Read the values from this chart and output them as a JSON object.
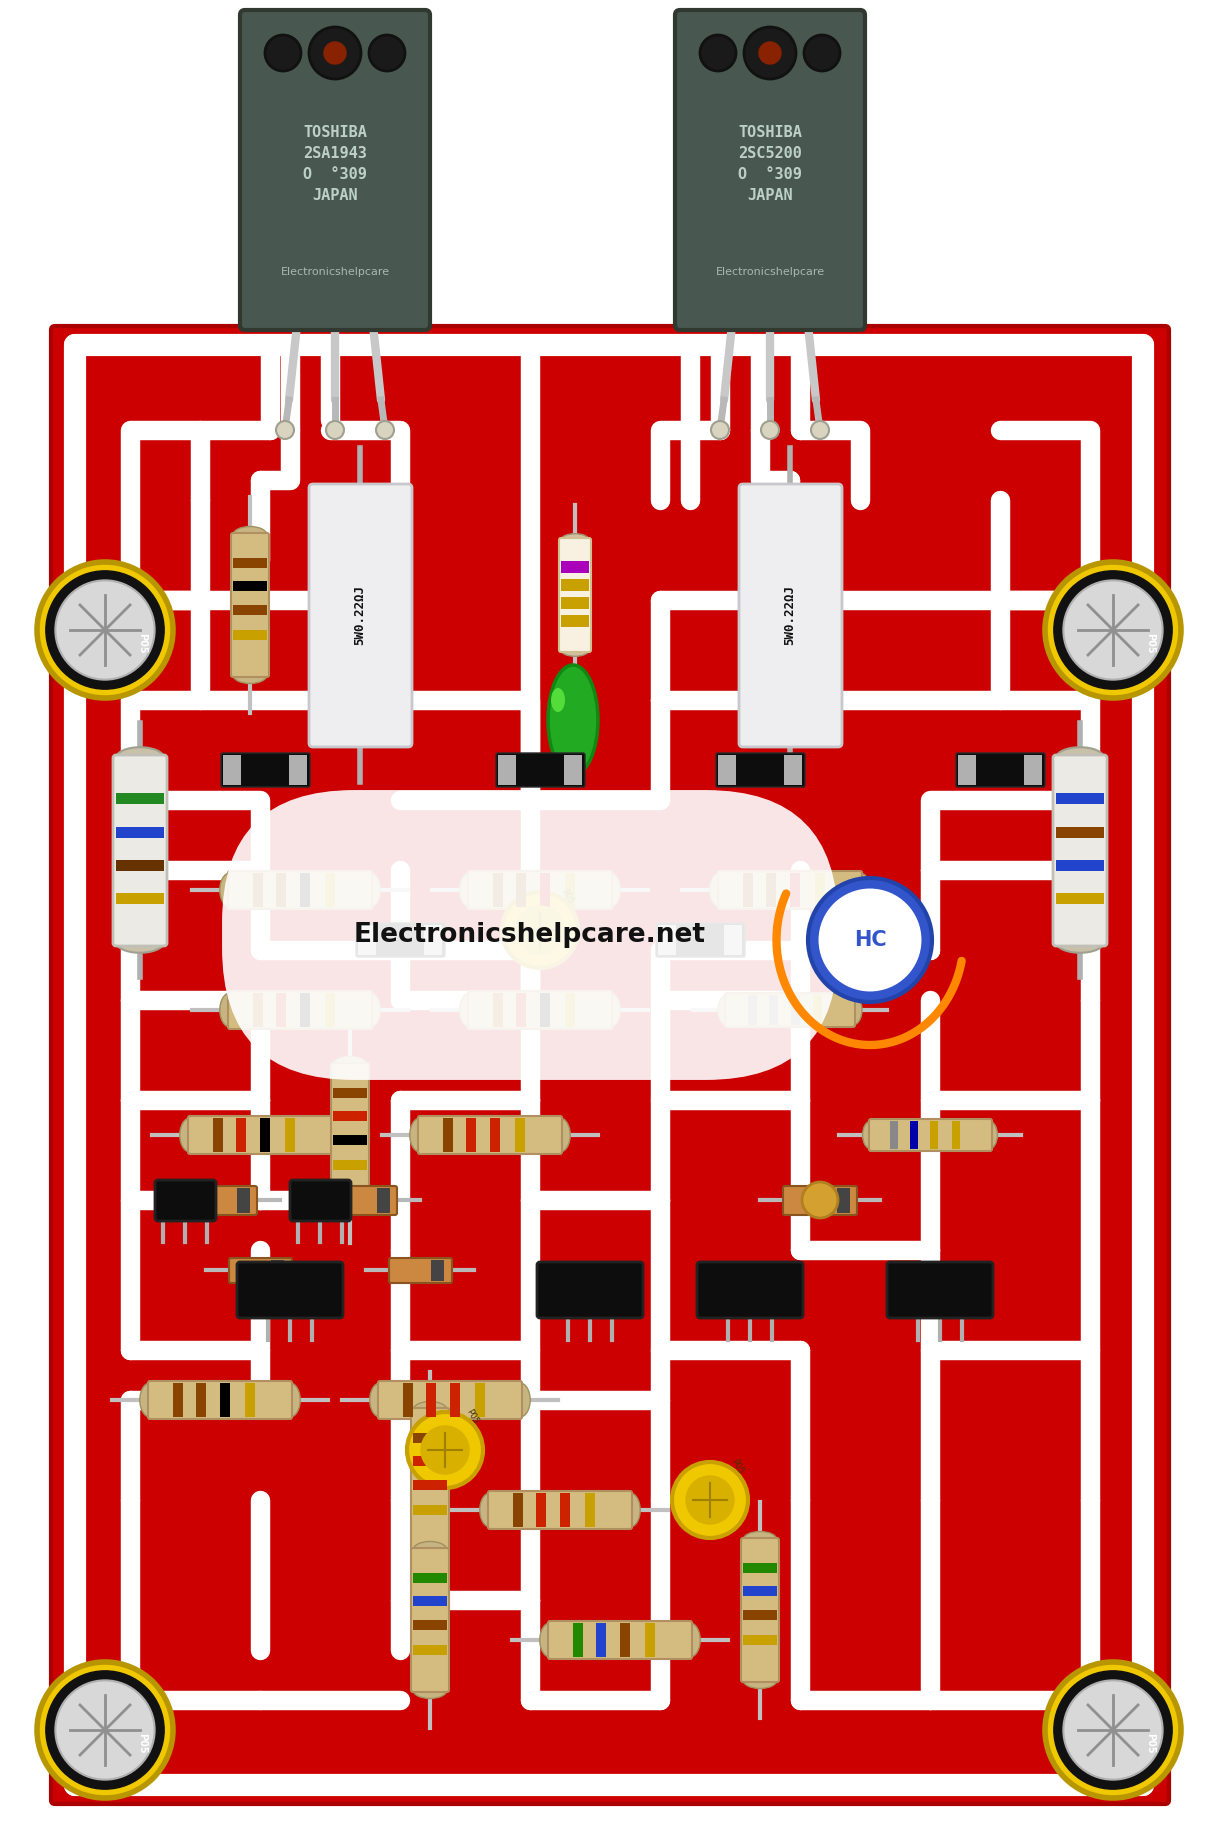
{
  "bg_color": "#FFFFFF",
  "pcb_color": "#CC0000",
  "pcb_white": "#FFFFFF",
  "figsize": [
    12.18,
    18.32
  ],
  "dpi": 100,
  "transistor1_label": "TOSHIBA\n2SA1943\nO  °309\nJAPAN",
  "transistor1_sublabel": "Electronicshelpcare",
  "transistor2_label": "TOSHIBA\n2SC5200\nO  °309\nJAPAN",
  "transistor2_sublabel": "Electronicshelpcare",
  "watermark": "Electronicshelpcare.net",
  "cement_label": "5W0.22ΩJ"
}
